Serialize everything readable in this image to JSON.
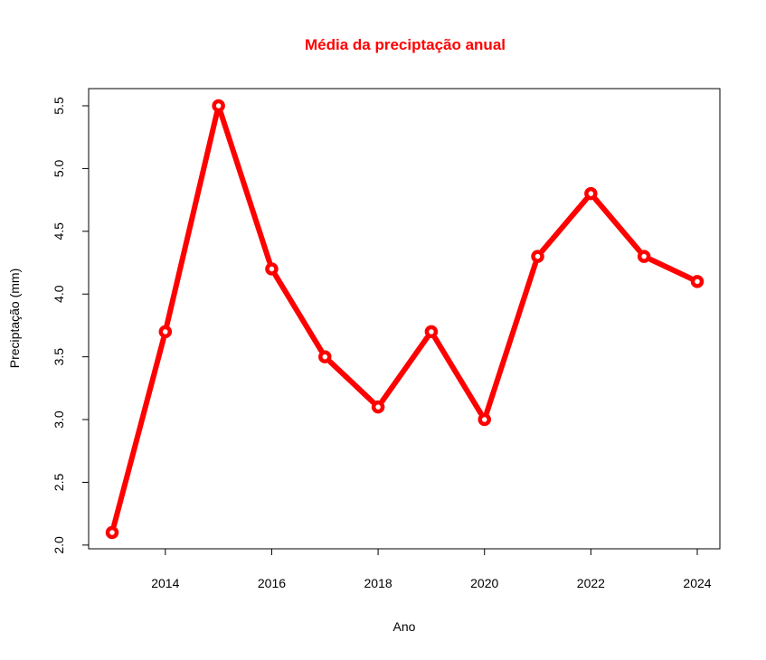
{
  "chart_data": {
    "type": "line",
    "title": "Média da preciptação anual",
    "xlabel": "Ano",
    "ylabel": "Preciptação (mm)",
    "x": [
      2013,
      2014,
      2015,
      2016,
      2017,
      2018,
      2019,
      2020,
      2021,
      2022,
      2023,
      2024
    ],
    "series": [
      {
        "values": [
          2.1,
          3.7,
          5.5,
          4.2,
          3.5,
          3.1,
          3.7,
          3.0,
          4.3,
          4.8,
          4.3,
          4.1
        ]
      }
    ],
    "xticks": [
      "2014",
      "2016",
      "2018",
      "2020",
      "2022",
      "2024"
    ],
    "yticks": [
      "2.0",
      "2.5",
      "3.0",
      "3.5",
      "4.0",
      "4.5",
      "5.0",
      "5.5"
    ],
    "xlim": [
      2013,
      2024
    ],
    "ylim": [
      2.1,
      5.5
    ],
    "grid": false,
    "colors": {
      "line": "#ff0000",
      "title": "#ff0000",
      "marker_center": "#ffffff"
    }
  }
}
